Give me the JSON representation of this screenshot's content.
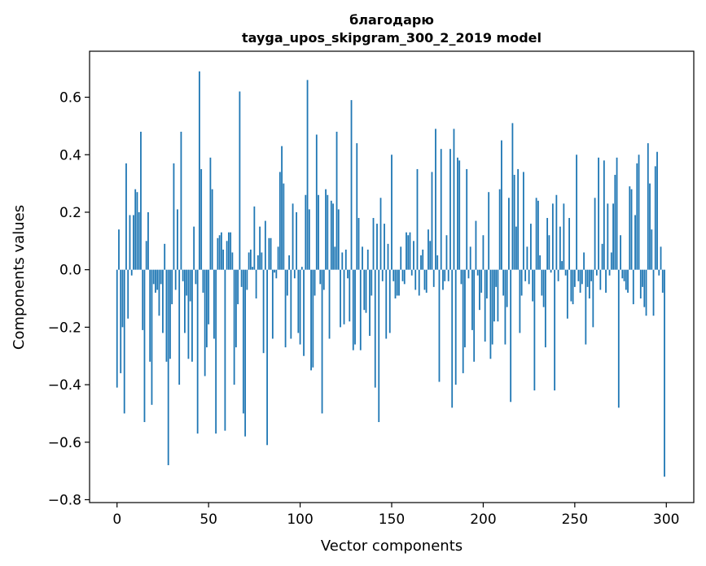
{
  "chart_data": {
    "type": "bar",
    "title_line1": "благодарю",
    "title_line2": "tayga_upos_skipgram_300_2_2019 model",
    "xlabel": "Vector components",
    "ylabel": "Components values",
    "xlim": [
      -15,
      315
    ],
    "ylim": [
      -0.81,
      0.76
    ],
    "xticks": [
      0,
      50,
      100,
      150,
      200,
      250,
      300
    ],
    "yticks": [
      -0.8,
      -0.6,
      -0.4,
      -0.2,
      0.0,
      0.2,
      0.4,
      0.6
    ],
    "ytick_labels": [
      "−0.8",
      "−0.6",
      "−0.4",
      "−0.2",
      "0.0",
      "0.2",
      "0.4",
      "0.6"
    ],
    "bar_color": "#1f77b4",
    "values": [
      -0.41,
      0.14,
      -0.36,
      -0.2,
      -0.5,
      0.37,
      -0.17,
      0.19,
      -0.02,
      0.19,
      0.28,
      0.27,
      0.2,
      0.48,
      -0.21,
      -0.53,
      0.1,
      0.2,
      -0.32,
      -0.47,
      -0.05,
      -0.08,
      -0.07,
      -0.16,
      -0.05,
      -0.22,
      0.09,
      -0.32,
      -0.68,
      -0.31,
      -0.12,
      0.37,
      -0.07,
      0.21,
      -0.4,
      0.48,
      -0.04,
      -0.22,
      -0.09,
      -0.31,
      -0.11,
      -0.32,
      0.15,
      -0.05,
      -0.57,
      0.69,
      0.35,
      -0.08,
      -0.37,
      -0.27,
      -0.19,
      0.39,
      0.28,
      -0.24,
      -0.57,
      0.11,
      0.12,
      0.13,
      0.07,
      -0.56,
      0.1,
      0.13,
      0.13,
      0.06,
      -0.4,
      -0.27,
      -0.12,
      0.62,
      -0.06,
      -0.5,
      -0.58,
      -0.07,
      0.06,
      0.07,
      0.01,
      0.22,
      -0.1,
      0.05,
      0.15,
      0.06,
      -0.29,
      0.17,
      -0.61,
      0.11,
      0.11,
      -0.24,
      -0.01,
      -0.03,
      0.08,
      0.34,
      0.43,
      0.3,
      -0.27,
      -0.09,
      0.05,
      -0.24,
      0.23,
      -0.03,
      0.2,
      -0.22,
      -0.26,
      0.01,
      -0.3,
      0.26,
      0.66,
      0.21,
      -0.35,
      -0.34,
      -0.09,
      0.47,
      0.26,
      -0.05,
      -0.5,
      -0.07,
      0.28,
      0.26,
      -0.24,
      0.24,
      0.23,
      0.08,
      0.48,
      0.21,
      -0.2,
      0.06,
      -0.19,
      0.07,
      -0.03,
      -0.18,
      0.59,
      -0.28,
      -0.26,
      0.44,
      0.18,
      -0.28,
      0.08,
      -0.14,
      -0.15,
      0.07,
      -0.23,
      -0.09,
      0.18,
      -0.41,
      0.16,
      -0.53,
      0.25,
      -0.04,
      0.16,
      -0.24,
      0.09,
      -0.22,
      0.4,
      -0.04,
      -0.1,
      -0.09,
      -0.09,
      0.08,
      -0.04,
      -0.05,
      0.13,
      0.12,
      0.13,
      -0.02,
      0.1,
      -0.07,
      0.35,
      -0.09,
      0.05,
      0.07,
      -0.07,
      -0.08,
      0.14,
      0.1,
      0.34,
      -0.06,
      0.49,
      0.05,
      -0.39,
      0.42,
      -0.07,
      -0.04,
      0.12,
      -0.04,
      0.42,
      -0.48,
      0.49,
      -0.4,
      0.39,
      0.38,
      -0.05,
      -0.36,
      -0.27,
      0.35,
      -0.03,
      0.08,
      -0.21,
      -0.32,
      0.17,
      -0.02,
      -0.14,
      -0.08,
      0.12,
      -0.25,
      -0.1,
      0.27,
      -0.31,
      -0.26,
      -0.18,
      -0.06,
      -0.18,
      0.28,
      0.45,
      -0.09,
      -0.26,
      -0.13,
      0.25,
      -0.46,
      0.51,
      0.33,
      0.15,
      0.35,
      -0.22,
      -0.09,
      0.34,
      -0.04,
      0.08,
      -0.05,
      0.16,
      -0.11,
      -0.42,
      0.25,
      0.24,
      0.05,
      -0.09,
      -0.13,
      -0.27,
      0.18,
      0.12,
      -0.01,
      0.23,
      -0.42,
      0.26,
      -0.04,
      0.15,
      0.03,
      0.23,
      -0.02,
      -0.17,
      0.18,
      -0.11,
      -0.12,
      -0.06,
      0.4,
      -0.04,
      -0.08,
      -0.05,
      0.06,
      -0.26,
      -0.06,
      -0.1,
      -0.04,
      -0.2,
      0.25,
      -0.02,
      0.39,
      -0.07,
      0.09,
      0.38,
      -0.08,
      0.23,
      -0.02,
      0.06,
      0.23,
      0.33,
      0.39,
      -0.48,
      0.12,
      -0.03,
      -0.04,
      -0.07,
      -0.08,
      0.29,
      0.28,
      -0.12,
      0.19,
      0.37,
      0.4,
      -0.1,
      -0.06,
      -0.13,
      -0.16,
      0.44,
      0.3,
      0.14,
      -0.16,
      0.36,
      0.41,
      -0.02,
      0.08,
      -0.08,
      -0.72
    ]
  }
}
